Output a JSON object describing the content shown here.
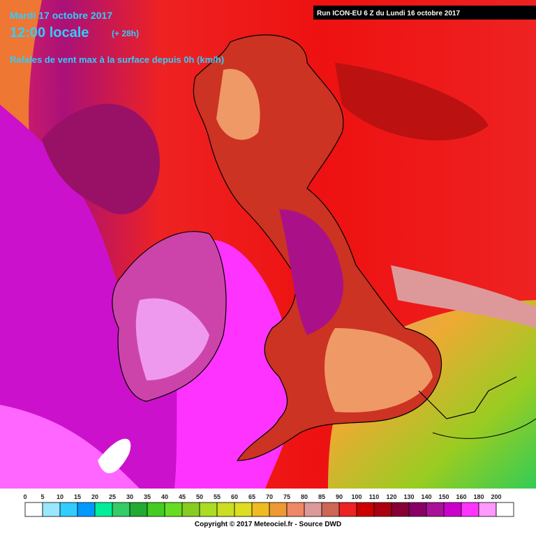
{
  "header": {
    "date": "Mardi 17 octobre 2017",
    "time": "12:00 locale",
    "lead": "(+ 28h)",
    "subtitle": "Rafales de vent max à la surface depuis 0h (km/h)",
    "run": "Run ICON-EU 6 Z du Lundi 16 octobre 2017"
  },
  "legend": {
    "items": [
      {
        "label": 0,
        "color": "#ffffff"
      },
      {
        "label": 5,
        "color": "#99e8ff"
      },
      {
        "label": 10,
        "color": "#33ccff"
      },
      {
        "label": 15,
        "color": "#0099ff"
      },
      {
        "label": 20,
        "color": "#00ee99"
      },
      {
        "label": 25,
        "color": "#33cc66"
      },
      {
        "label": 30,
        "color": "#22aa33"
      },
      {
        "label": 35,
        "color": "#44cc22"
      },
      {
        "label": 40,
        "color": "#66dd22"
      },
      {
        "label": 45,
        "color": "#88cc22"
      },
      {
        "label": 50,
        "color": "#aadd22"
      },
      {
        "label": 55,
        "color": "#ccdd22"
      },
      {
        "label": 60,
        "color": "#dddd22"
      },
      {
        "label": 65,
        "color": "#eebb22"
      },
      {
        "label": 70,
        "color": "#ee9933"
      },
      {
        "label": 75,
        "color": "#ee8866"
      },
      {
        "label": 80,
        "color": "#dd9999"
      },
      {
        "label": 85,
        "color": "#cc6655"
      },
      {
        "label": 90,
        "color": "#ee2222"
      },
      {
        "label": 100,
        "color": "#cc0000"
      },
      {
        "label": 110,
        "color": "#aa0011"
      },
      {
        "label": 120,
        "color": "#880033"
      },
      {
        "label": 130,
        "color": "#880066"
      },
      {
        "label": 140,
        "color": "#aa1199"
      },
      {
        "label": 150,
        "color": "#cc00cc"
      },
      {
        "label": 160,
        "color": "#ff33ff"
      },
      {
        "label": 180,
        "color": "#ff99ff"
      },
      {
        "label": 200,
        "color": "#ffffff"
      }
    ]
  },
  "footer": {
    "copyright": "Copyright © 2017 Meteociel.fr - Source DWD"
  }
}
